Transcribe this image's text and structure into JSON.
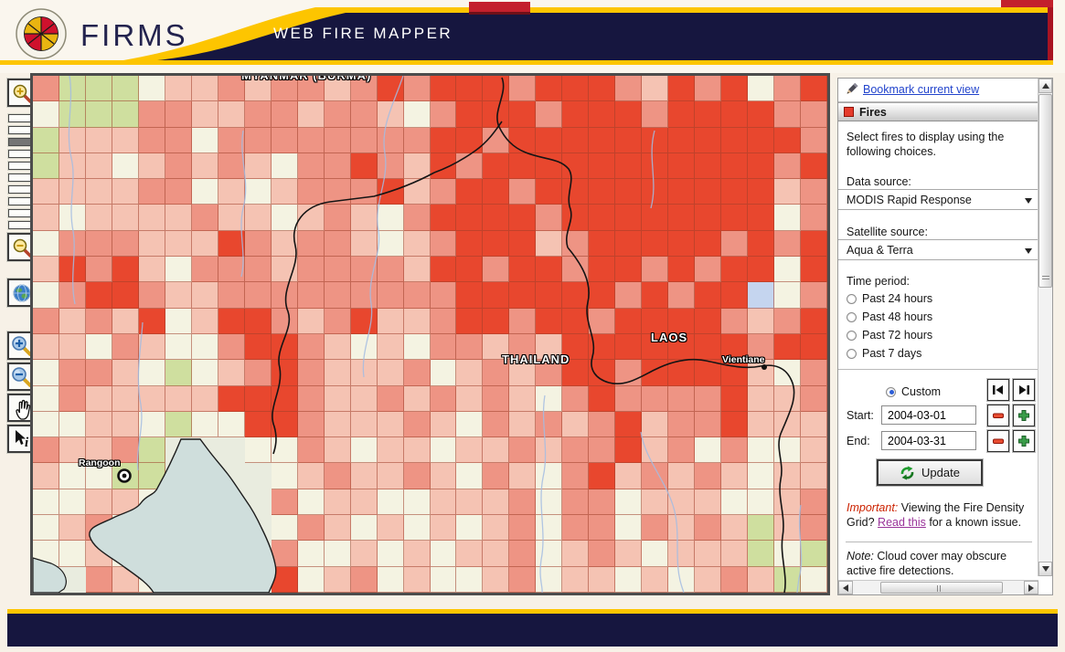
{
  "header": {
    "brand": "FIRMS",
    "app_title": "WEB FIRE MAPPER",
    "logo_name": "university-of-maryland-seal"
  },
  "toolbar": {
    "zoom_levels": 10,
    "active_zoom_index": 2,
    "tools": [
      "zoom-in",
      "zoom-out",
      "full-extent",
      "zoom-box-in",
      "zoom-box-out",
      "pan",
      "identify"
    ]
  },
  "map": {
    "labels": {
      "myanmar": "MYANMAR (BURMA)",
      "thailand": "THAILAND",
      "laos": "LAOS",
      "vientiane": "Vientiane",
      "rangoon": "Rangoon"
    },
    "grid": {
      "palette": {
        "0": "#f4f3e2",
        "1": "#f5c3b3",
        "2": "#ee9484",
        "3": "#e8472e",
        "G": "#cfdf9f",
        "W": "#c5d5ef",
        ".": "#e9ecdf"
      },
      "rows": [
        "2GGG01121221232333233321323023",
        "0GGG22112212210233323332333322",
        "G11122022222222332333333333332",
        "G11012121022321323333333333323",
        "111122010122231233233333333312",
        "101111211012102333323333333302",
        "022211132122101233312333332323",
        "132310222122221332332332323303",
        "023321122222222233333323233W02",
        "212130133212311233233233332123",
        "110210023321010221213333333233",
        "02210G012321112012123323333102",
        "021111133321121212102322223112",
        "00110G003321112102121231223111",
        "2112G...0021011011212231202001",
        "100GG....012112102102312121011",
        "00110....201100111202201110012",
        "01201....021010101202202121G12",
        "0010.....200101011201210111G0G",
        "..210....3012010012011010121G0"
      ]
    }
  },
  "sidebar": {
    "bookmark_link": "Bookmark current view",
    "panel_title": "Fires",
    "intro": "Select fires to display using the following choices.",
    "data_source_label": "Data source:",
    "data_source_value": "MODIS Rapid Response",
    "satellite_source_label": "Satellite source:",
    "satellite_source_value": "Aqua & Terra",
    "time_period_label": "Time period:",
    "time_options": [
      "Past 24 hours",
      "Past 48 hours",
      "Past 72 hours",
      "Past 7 days"
    ],
    "custom_label": "Custom",
    "start_label": "Start:",
    "start_value": "2004-03-01",
    "end_label": "End:",
    "end_value": "2004-03-31",
    "update_label": "Update",
    "important_prefix": "Important:",
    "important_mid": " Viewing the Fire Density Grid? ",
    "read_this_link": "Read this",
    "important_suffix": " for a known issue.",
    "note_prefix": "Note:",
    "note_text": " Cloud cover may obscure active fire detections."
  },
  "colors": {
    "accent_yellow": "#fdc500",
    "navy": "#16163f",
    "fire_red_high": "#e8472e",
    "fire_red_low": "#f5c3b3",
    "vegetation_green": "#cfdf9f",
    "sea": "#cfdedc",
    "link_blue": "#2244cc",
    "visited_purple": "#993399",
    "important_red": "#cc2200"
  }
}
